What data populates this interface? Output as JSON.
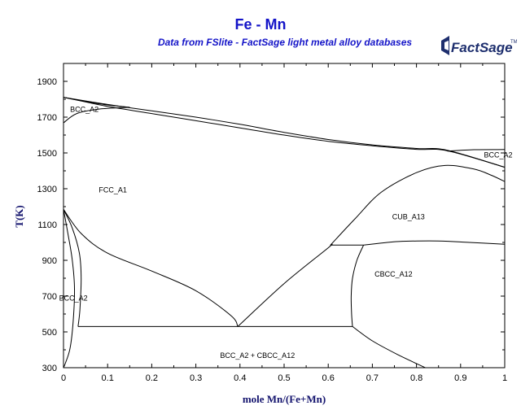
{
  "chart_data": {
    "type": "line",
    "title": "Fe - Mn",
    "subtitle": "Data from FSlite - FactSage light metal alloy databases",
    "xlabel": "mole Mn/(Fe+Mn)",
    "ylabel": "T(K)",
    "xlim": [
      0,
      1
    ],
    "ylim": [
      300,
      2000
    ],
    "x_ticks": [
      "0",
      "0.1",
      "0.2",
      "0.3",
      "0.4",
      "0.5",
      "0.6",
      "0.7",
      "0.8",
      "0.9",
      "1"
    ],
    "y_ticks": [
      "300",
      "500",
      "700",
      "900",
      "1100",
      "1300",
      "1500",
      "1700",
      "1900"
    ],
    "grid": false,
    "regions": [
      {
        "label": "BCC_A2",
        "x": 0.015,
        "y": 1730
      },
      {
        "label": "FCC_A1",
        "x": 0.08,
        "y": 1280
      },
      {
        "label": "BCC_A2",
        "x": 0.953,
        "y": 1475
      },
      {
        "label": "CUB_A13",
        "x": 0.745,
        "y": 1130
      },
      {
        "label": "CBCC_A12",
        "x": 0.705,
        "y": 810
      },
      {
        "label": "BCC_A2",
        "x": -0.01,
        "y": 675
      },
      {
        "label": "BCC_A2 + CBCC_A12",
        "x": 0.355,
        "y": 355
      }
    ],
    "series": [
      {
        "values": [
          [
            0,
            1811
          ],
          [
            0.1,
            1771
          ],
          [
            0.2,
            1735
          ],
          [
            0.3,
            1700
          ],
          [
            0.4,
            1660
          ],
          [
            0.5,
            1615
          ],
          [
            0.6,
            1575
          ],
          [
            0.7,
            1545
          ],
          [
            0.8,
            1525
          ],
          [
            0.87,
            1515
          ],
          [
            1,
            1420
          ]
        ]
      },
      {
        "values": [
          [
            0,
            1811
          ],
          [
            0.1,
            1760
          ],
          [
            0.2,
            1720
          ],
          [
            0.3,
            1680
          ],
          [
            0.4,
            1640
          ],
          [
            0.5,
            1600
          ],
          [
            0.6,
            1565
          ],
          [
            0.7,
            1540
          ],
          [
            0.8,
            1520
          ],
          [
            0.87,
            1512
          ],
          [
            1,
            1420
          ]
        ]
      },
      {
        "values": [
          [
            0,
            1811
          ],
          [
            0.05,
            1787
          ],
          [
            0.1,
            1768
          ],
          [
            0.15,
            1755
          ]
        ]
      },
      {
        "values": [
          [
            0,
            1668
          ],
          [
            0.03,
            1720
          ],
          [
            0.08,
            1745
          ],
          [
            0.15,
            1755
          ]
        ]
      },
      {
        "values": [
          [
            0.87,
            1510
          ],
          [
            0.93,
            1518
          ],
          [
            1,
            1519
          ]
        ]
      },
      {
        "values": [
          [
            0,
            1185
          ],
          [
            0.04,
            1050
          ],
          [
            0.1,
            940
          ],
          [
            0.2,
            840
          ],
          [
            0.3,
            730
          ],
          [
            0.38,
            590
          ],
          [
            0.395,
            530
          ]
        ]
      },
      {
        "values": [
          [
            0.395,
            530
          ],
          [
            0.5,
            770
          ],
          [
            0.6,
            970
          ],
          [
            0.605,
            985
          ]
        ]
      },
      {
        "values": [
          [
            0,
            1185
          ],
          [
            0.02,
            1080
          ],
          [
            0.036,
            940
          ],
          [
            0.04,
            800
          ],
          [
            0.037,
            620
          ],
          [
            0.033,
            530
          ]
        ]
      },
      {
        "values": [
          [
            0,
            1185
          ],
          [
            0.01,
            1050
          ],
          [
            0.02,
            900
          ],
          [
            0.025,
            740
          ],
          [
            0.022,
            560
          ],
          [
            0.015,
            410
          ],
          [
            0.005,
            330
          ],
          [
            0,
            300
          ]
        ]
      },
      {
        "values": [
          [
            0.033,
            530
          ],
          [
            0.395,
            530
          ],
          [
            0.655,
            530
          ]
        ]
      },
      {
        "values": [
          [
            0.605,
            985
          ],
          [
            0.68,
            985
          ]
        ]
      },
      {
        "values": [
          [
            0.605,
            985
          ],
          [
            0.66,
            1130
          ],
          [
            0.72,
            1280
          ],
          [
            0.8,
            1390
          ],
          [
            0.865,
            1430
          ],
          [
            0.93,
            1410
          ],
          [
            0.97,
            1375
          ],
          [
            1,
            1340
          ]
        ]
      },
      {
        "values": [
          [
            0.68,
            985
          ],
          [
            0.76,
            1005
          ],
          [
            0.85,
            1008
          ],
          [
            0.92,
            1000
          ],
          [
            1,
            990
          ]
        ]
      },
      {
        "values": [
          [
            0.68,
            985
          ],
          [
            0.665,
            900
          ],
          [
            0.655,
            800
          ],
          [
            0.652,
            700
          ],
          [
            0.653,
            600
          ],
          [
            0.655,
            530
          ]
        ]
      },
      {
        "values": [
          [
            0.655,
            530
          ],
          [
            0.7,
            450
          ],
          [
            0.76,
            370
          ],
          [
            0.82,
            300
          ]
        ]
      }
    ]
  },
  "logo": {
    "text": "FactSage",
    "trademark": "TM"
  }
}
